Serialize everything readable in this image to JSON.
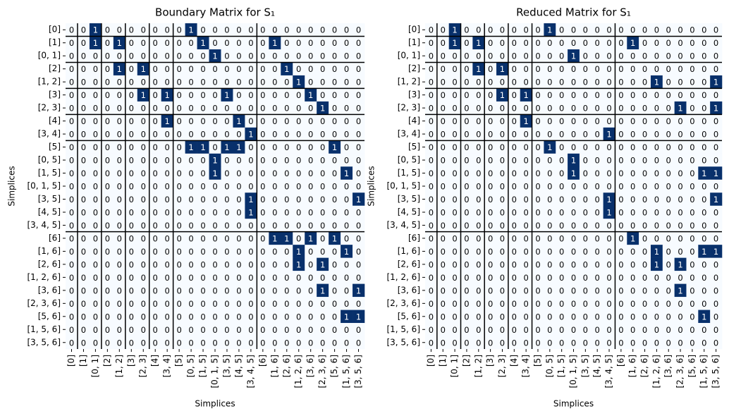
{
  "chart_data": [
    {
      "type": "heatmap",
      "title": "Boundary Matrix for S₁",
      "xlabel": "Simplices",
      "ylabel": "Simplices",
      "x": [
        "[0]",
        "[1]",
        "[0, 1]",
        "[2]",
        "[1, 2]",
        "[3]",
        "[2, 3]",
        "[4]",
        "[3, 4]",
        "[5]",
        "[0, 5]",
        "[1, 5]",
        "[0, 1, 5]",
        "[3, 5]",
        "[4, 5]",
        "[3, 4, 5]",
        "[6]",
        "[1, 6]",
        "[2, 6]",
        "[1, 2, 6]",
        "[3, 6]",
        "[2, 3, 6]",
        "[5, 6]",
        "[1, 5, 6]",
        "[3, 5, 6]"
      ],
      "y": [
        "[0]",
        "[1]",
        "[0, 1]",
        "[2]",
        "[1, 2]",
        "[3]",
        "[2, 3]",
        "[4]",
        "[3, 4]",
        "[5]",
        "[0, 5]",
        "[1, 5]",
        "[0, 1, 5]",
        "[3, 5]",
        "[4, 5]",
        "[3, 4, 5]",
        "[6]",
        "[1, 6]",
        "[2, 6]",
        "[1, 2, 6]",
        "[3, 6]",
        "[2, 3, 6]",
        "[5, 6]",
        "[1, 5, 6]",
        "[3, 5, 6]"
      ],
      "colors": [
        "#f7fbff",
        "#08306b"
      ],
      "values": [
        [
          0,
          0,
          1,
          0,
          0,
          0,
          0,
          0,
          0,
          0,
          1,
          0,
          0,
          0,
          0,
          0,
          0,
          0,
          0,
          0,
          0,
          0,
          0,
          0,
          0
        ],
        [
          0,
          0,
          1,
          0,
          1,
          0,
          0,
          0,
          0,
          0,
          0,
          1,
          0,
          0,
          0,
          0,
          0,
          1,
          0,
          0,
          0,
          0,
          0,
          0,
          0
        ],
        [
          0,
          0,
          0,
          0,
          0,
          0,
          0,
          0,
          0,
          0,
          0,
          0,
          1,
          0,
          0,
          0,
          0,
          0,
          0,
          0,
          0,
          0,
          0,
          0,
          0
        ],
        [
          0,
          0,
          0,
          0,
          1,
          0,
          1,
          0,
          0,
          0,
          0,
          0,
          0,
          0,
          0,
          0,
          0,
          0,
          1,
          0,
          0,
          0,
          0,
          0,
          0
        ],
        [
          0,
          0,
          0,
          0,
          0,
          0,
          0,
          0,
          0,
          0,
          0,
          0,
          0,
          0,
          0,
          0,
          0,
          0,
          0,
          1,
          0,
          0,
          0,
          0,
          0
        ],
        [
          0,
          0,
          0,
          0,
          0,
          0,
          1,
          0,
          1,
          0,
          0,
          0,
          0,
          1,
          0,
          0,
          0,
          0,
          0,
          0,
          1,
          0,
          0,
          0,
          0
        ],
        [
          0,
          0,
          0,
          0,
          0,
          0,
          0,
          0,
          0,
          0,
          0,
          0,
          0,
          0,
          0,
          0,
          0,
          0,
          0,
          0,
          0,
          1,
          0,
          0,
          0
        ],
        [
          0,
          0,
          0,
          0,
          0,
          0,
          0,
          0,
          1,
          0,
          0,
          0,
          0,
          0,
          1,
          0,
          0,
          0,
          0,
          0,
          0,
          0,
          0,
          0,
          0
        ],
        [
          0,
          0,
          0,
          0,
          0,
          0,
          0,
          0,
          0,
          0,
          0,
          0,
          0,
          0,
          0,
          1,
          0,
          0,
          0,
          0,
          0,
          0,
          0,
          0,
          0
        ],
        [
          0,
          0,
          0,
          0,
          0,
          0,
          0,
          0,
          0,
          0,
          1,
          1,
          0,
          1,
          1,
          0,
          0,
          0,
          0,
          0,
          0,
          0,
          1,
          0,
          0
        ],
        [
          0,
          0,
          0,
          0,
          0,
          0,
          0,
          0,
          0,
          0,
          0,
          0,
          1,
          0,
          0,
          0,
          0,
          0,
          0,
          0,
          0,
          0,
          0,
          0,
          0
        ],
        [
          0,
          0,
          0,
          0,
          0,
          0,
          0,
          0,
          0,
          0,
          0,
          0,
          1,
          0,
          0,
          0,
          0,
          0,
          0,
          0,
          0,
          0,
          0,
          1,
          0
        ],
        [
          0,
          0,
          0,
          0,
          0,
          0,
          0,
          0,
          0,
          0,
          0,
          0,
          0,
          0,
          0,
          0,
          0,
          0,
          0,
          0,
          0,
          0,
          0,
          0,
          0
        ],
        [
          0,
          0,
          0,
          0,
          0,
          0,
          0,
          0,
          0,
          0,
          0,
          0,
          0,
          0,
          0,
          1,
          0,
          0,
          0,
          0,
          0,
          0,
          0,
          0,
          1
        ],
        [
          0,
          0,
          0,
          0,
          0,
          0,
          0,
          0,
          0,
          0,
          0,
          0,
          0,
          0,
          0,
          1,
          0,
          0,
          0,
          0,
          0,
          0,
          0,
          0,
          0
        ],
        [
          0,
          0,
          0,
          0,
          0,
          0,
          0,
          0,
          0,
          0,
          0,
          0,
          0,
          0,
          0,
          0,
          0,
          0,
          0,
          0,
          0,
          0,
          0,
          0,
          0
        ],
        [
          0,
          0,
          0,
          0,
          0,
          0,
          0,
          0,
          0,
          0,
          0,
          0,
          0,
          0,
          0,
          0,
          0,
          1,
          1,
          0,
          1,
          0,
          1,
          0,
          0
        ],
        [
          0,
          0,
          0,
          0,
          0,
          0,
          0,
          0,
          0,
          0,
          0,
          0,
          0,
          0,
          0,
          0,
          0,
          0,
          0,
          1,
          0,
          0,
          0,
          1,
          0
        ],
        [
          0,
          0,
          0,
          0,
          0,
          0,
          0,
          0,
          0,
          0,
          0,
          0,
          0,
          0,
          0,
          0,
          0,
          0,
          0,
          1,
          0,
          1,
          0,
          0,
          0
        ],
        [
          0,
          0,
          0,
          0,
          0,
          0,
          0,
          0,
          0,
          0,
          0,
          0,
          0,
          0,
          0,
          0,
          0,
          0,
          0,
          0,
          0,
          0,
          0,
          0,
          0
        ],
        [
          0,
          0,
          0,
          0,
          0,
          0,
          0,
          0,
          0,
          0,
          0,
          0,
          0,
          0,
          0,
          0,
          0,
          0,
          0,
          0,
          0,
          1,
          0,
          0,
          1
        ],
        [
          0,
          0,
          0,
          0,
          0,
          0,
          0,
          0,
          0,
          0,
          0,
          0,
          0,
          0,
          0,
          0,
          0,
          0,
          0,
          0,
          0,
          0,
          0,
          0,
          0
        ],
        [
          0,
          0,
          0,
          0,
          0,
          0,
          0,
          0,
          0,
          0,
          0,
          0,
          0,
          0,
          0,
          0,
          0,
          0,
          0,
          0,
          0,
          0,
          0,
          1,
          1
        ],
        [
          0,
          0,
          0,
          0,
          0,
          0,
          0,
          0,
          0,
          0,
          0,
          0,
          0,
          0,
          0,
          0,
          0,
          0,
          0,
          0,
          0,
          0,
          0,
          0,
          0
        ],
        [
          0,
          0,
          0,
          0,
          0,
          0,
          0,
          0,
          0,
          0,
          0,
          0,
          0,
          0,
          0,
          0,
          0,
          0,
          0,
          0,
          0,
          0,
          0,
          0,
          0
        ]
      ]
    },
    {
      "type": "heatmap",
      "title": "Reduced Matrix for S₁",
      "xlabel": "Simplices",
      "ylabel": "Simplices",
      "x": [
        "[0]",
        "[1]",
        "[0, 1]",
        "[2]",
        "[1, 2]",
        "[3]",
        "[2, 3]",
        "[4]",
        "[3, 4]",
        "[5]",
        "[0, 5]",
        "[1, 5]",
        "[0, 1, 5]",
        "[3, 5]",
        "[4, 5]",
        "[3, 4, 5]",
        "[6]",
        "[1, 6]",
        "[2, 6]",
        "[1, 2, 6]",
        "[3, 6]",
        "[2, 3, 6]",
        "[5, 6]",
        "[1, 5, 6]",
        "[3, 5, 6]"
      ],
      "y": [
        "[0]",
        "[1]",
        "[0, 1]",
        "[2]",
        "[1, 2]",
        "[3]",
        "[2, 3]",
        "[4]",
        "[3, 4]",
        "[5]",
        "[0, 5]",
        "[1, 5]",
        "[0, 1, 5]",
        "[3, 5]",
        "[4, 5]",
        "[3, 4, 5]",
        "[6]",
        "[1, 6]",
        "[2, 6]",
        "[1, 2, 6]",
        "[3, 6]",
        "[2, 3, 6]",
        "[5, 6]",
        "[1, 5, 6]",
        "[3, 5, 6]"
      ],
      "colors": [
        "#f7fbff",
        "#08306b"
      ],
      "values": [
        [
          0,
          0,
          1,
          0,
          0,
          0,
          0,
          0,
          0,
          0,
          1,
          0,
          0,
          0,
          0,
          0,
          0,
          0,
          0,
          0,
          0,
          0,
          0,
          0,
          0
        ],
        [
          0,
          0,
          1,
          0,
          1,
          0,
          0,
          0,
          0,
          0,
          0,
          0,
          0,
          0,
          0,
          0,
          0,
          1,
          0,
          0,
          0,
          0,
          0,
          0,
          0
        ],
        [
          0,
          0,
          0,
          0,
          0,
          0,
          0,
          0,
          0,
          0,
          0,
          0,
          1,
          0,
          0,
          0,
          0,
          0,
          0,
          0,
          0,
          0,
          0,
          0,
          0
        ],
        [
          0,
          0,
          0,
          0,
          1,
          0,
          1,
          0,
          0,
          0,
          0,
          0,
          0,
          0,
          0,
          0,
          0,
          0,
          0,
          0,
          0,
          0,
          0,
          0,
          0
        ],
        [
          0,
          0,
          0,
          0,
          0,
          0,
          0,
          0,
          0,
          0,
          0,
          0,
          0,
          0,
          0,
          0,
          0,
          0,
          0,
          1,
          0,
          0,
          0,
          0,
          1
        ],
        [
          0,
          0,
          0,
          0,
          0,
          0,
          1,
          0,
          1,
          0,
          0,
          0,
          0,
          0,
          0,
          0,
          0,
          0,
          0,
          0,
          0,
          0,
          0,
          0,
          0
        ],
        [
          0,
          0,
          0,
          0,
          0,
          0,
          0,
          0,
          0,
          0,
          0,
          0,
          0,
          0,
          0,
          0,
          0,
          0,
          0,
          0,
          0,
          1,
          0,
          0,
          1
        ],
        [
          0,
          0,
          0,
          0,
          0,
          0,
          0,
          0,
          1,
          0,
          0,
          0,
          0,
          0,
          0,
          0,
          0,
          0,
          0,
          0,
          0,
          0,
          0,
          0,
          0
        ],
        [
          0,
          0,
          0,
          0,
          0,
          0,
          0,
          0,
          0,
          0,
          0,
          0,
          0,
          0,
          0,
          1,
          0,
          0,
          0,
          0,
          0,
          0,
          0,
          0,
          0
        ],
        [
          0,
          0,
          0,
          0,
          0,
          0,
          0,
          0,
          0,
          0,
          1,
          0,
          0,
          0,
          0,
          0,
          0,
          0,
          0,
          0,
          0,
          0,
          0,
          0,
          0
        ],
        [
          0,
          0,
          0,
          0,
          0,
          0,
          0,
          0,
          0,
          0,
          0,
          0,
          1,
          0,
          0,
          0,
          0,
          0,
          0,
          0,
          0,
          0,
          0,
          0,
          0
        ],
        [
          0,
          0,
          0,
          0,
          0,
          0,
          0,
          0,
          0,
          0,
          0,
          0,
          1,
          0,
          0,
          0,
          0,
          0,
          0,
          0,
          0,
          0,
          0,
          1,
          1
        ],
        [
          0,
          0,
          0,
          0,
          0,
          0,
          0,
          0,
          0,
          0,
          0,
          0,
          0,
          0,
          0,
          0,
          0,
          0,
          0,
          0,
          0,
          0,
          0,
          0,
          0
        ],
        [
          0,
          0,
          0,
          0,
          0,
          0,
          0,
          0,
          0,
          0,
          0,
          0,
          0,
          0,
          0,
          1,
          0,
          0,
          0,
          0,
          0,
          0,
          0,
          0,
          1
        ],
        [
          0,
          0,
          0,
          0,
          0,
          0,
          0,
          0,
          0,
          0,
          0,
          0,
          0,
          0,
          0,
          1,
          0,
          0,
          0,
          0,
          0,
          0,
          0,
          0,
          0
        ],
        [
          0,
          0,
          0,
          0,
          0,
          0,
          0,
          0,
          0,
          0,
          0,
          0,
          0,
          0,
          0,
          0,
          0,
          0,
          0,
          0,
          0,
          0,
          0,
          0,
          0
        ],
        [
          0,
          0,
          0,
          0,
          0,
          0,
          0,
          0,
          0,
          0,
          0,
          0,
          0,
          0,
          0,
          0,
          0,
          1,
          0,
          0,
          0,
          0,
          0,
          0,
          0
        ],
        [
          0,
          0,
          0,
          0,
          0,
          0,
          0,
          0,
          0,
          0,
          0,
          0,
          0,
          0,
          0,
          0,
          0,
          0,
          0,
          1,
          0,
          0,
          0,
          1,
          1
        ],
        [
          0,
          0,
          0,
          0,
          0,
          0,
          0,
          0,
          0,
          0,
          0,
          0,
          0,
          0,
          0,
          0,
          0,
          0,
          0,
          1,
          0,
          1,
          0,
          0,
          0
        ],
        [
          0,
          0,
          0,
          0,
          0,
          0,
          0,
          0,
          0,
          0,
          0,
          0,
          0,
          0,
          0,
          0,
          0,
          0,
          0,
          0,
          0,
          0,
          0,
          0,
          0
        ],
        [
          0,
          0,
          0,
          0,
          0,
          0,
          0,
          0,
          0,
          0,
          0,
          0,
          0,
          0,
          0,
          0,
          0,
          0,
          0,
          0,
          0,
          1,
          0,
          0,
          0
        ],
        [
          0,
          0,
          0,
          0,
          0,
          0,
          0,
          0,
          0,
          0,
          0,
          0,
          0,
          0,
          0,
          0,
          0,
          0,
          0,
          0,
          0,
          0,
          0,
          0,
          0
        ],
        [
          0,
          0,
          0,
          0,
          0,
          0,
          0,
          0,
          0,
          0,
          0,
          0,
          0,
          0,
          0,
          0,
          0,
          0,
          0,
          0,
          0,
          0,
          0,
          1,
          0
        ],
        [
          0,
          0,
          0,
          0,
          0,
          0,
          0,
          0,
          0,
          0,
          0,
          0,
          0,
          0,
          0,
          0,
          0,
          0,
          0,
          0,
          0,
          0,
          0,
          0,
          0
        ],
        [
          0,
          0,
          0,
          0,
          0,
          0,
          0,
          0,
          0,
          0,
          0,
          0,
          0,
          0,
          0,
          0,
          0,
          0,
          0,
          0,
          0,
          0,
          0,
          0,
          0
        ]
      ]
    }
  ]
}
